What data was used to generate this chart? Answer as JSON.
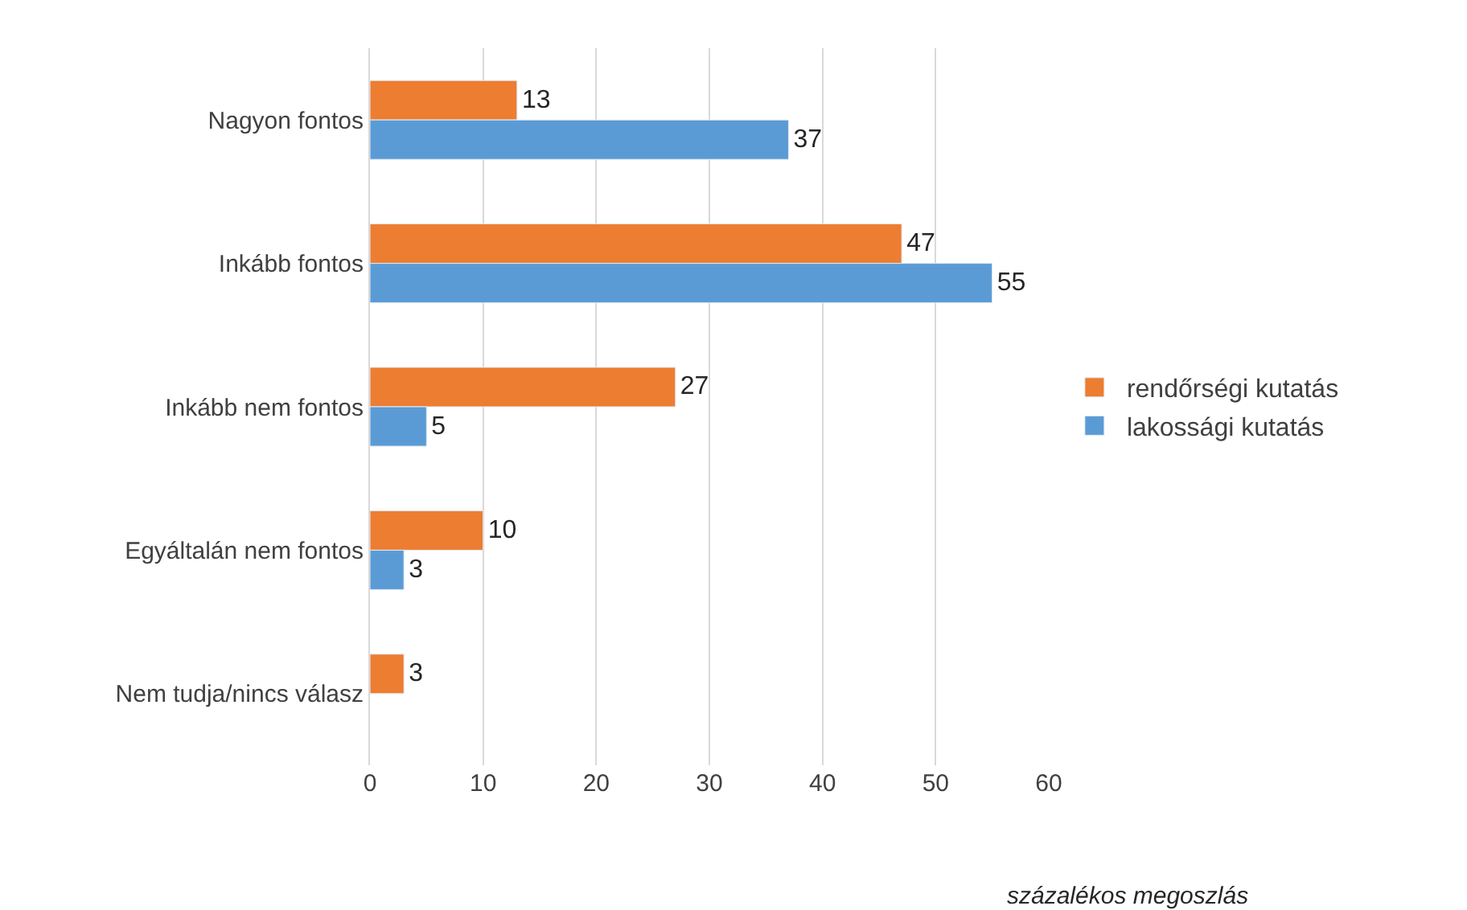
{
  "chart_data": {
    "type": "bar",
    "orientation": "horizontal",
    "categories": [
      "Nagyon fontos",
      "Inkább fontos",
      "Inkább nem fontos",
      "Egyáltalán nem fontos",
      "Nem tudja/nincs válasz"
    ],
    "series": [
      {
        "name": "rendőrségi kutatás",
        "color": "#ed7d31",
        "values": [
          13,
          47,
          27,
          10,
          3
        ]
      },
      {
        "name": "lakossági kutatás",
        "color": "#5b9bd5",
        "values": [
          37,
          55,
          5,
          3,
          null
        ]
      }
    ],
    "xlim": [
      0,
      60
    ],
    "xticks": [
      0,
      10,
      20,
      30,
      40,
      50,
      60
    ],
    "xlabel": "százalékos megoszlás",
    "grid": "x",
    "legend": "right",
    "data_labels": true
  }
}
